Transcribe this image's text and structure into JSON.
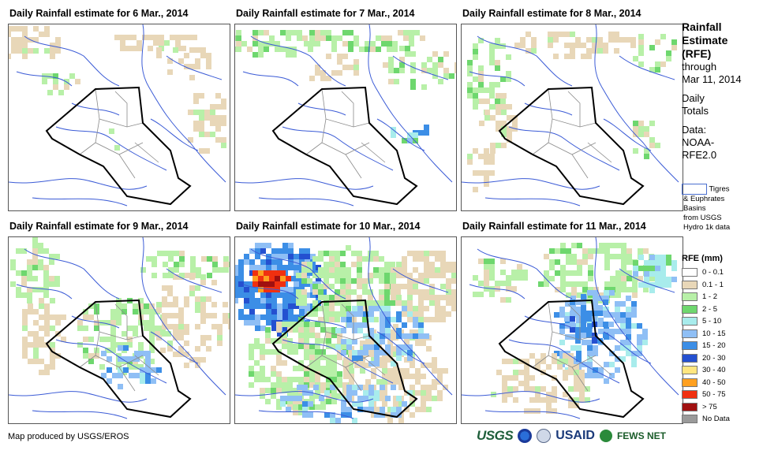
{
  "panels": [
    {
      "title": "Daily Rainfall estimate for 6 Mar., 2014"
    },
    {
      "title": "Daily Rainfall estimate for 7 Mar., 2014"
    },
    {
      "title": "Daily Rainfall estimate for 8 Mar., 2014"
    },
    {
      "title": "Daily Rainfall estimate for 9 Mar., 2014"
    },
    {
      "title": "Daily Rainfall estimate for 10 Mar., 2014"
    },
    {
      "title": "Daily Rainfall estimate for 11 Mar., 2014"
    }
  ],
  "sidebar": {
    "heading_1": "Rainfall",
    "heading_2": "Estimate",
    "heading_3": "(RFE)",
    "through": "through",
    "date": "Mar 11, 2014",
    "daily_1": "Daily",
    "daily_2": "Totals",
    "data_1": "Data:",
    "data_2": "NOAA-",
    "data_3": "RFE2.0"
  },
  "basin_key": {
    "line_1": "Tigres",
    "line_2": "& Euphrates",
    "line_3": "Basins",
    "line_4": "from USGS",
    "line_5": "Hydro 1k data"
  },
  "legend": {
    "title": "RFE (mm)",
    "items": [
      {
        "label": "0 - 0.1",
        "color": "#ffffff"
      },
      {
        "label": "0.1 - 1",
        "color": "#e8d7b8"
      },
      {
        "label": "1 - 2",
        "color": "#b8f0a8"
      },
      {
        "label": "2 - 5",
        "color": "#6ed76e"
      },
      {
        "label": "5 - 10",
        "color": "#a8ecec"
      },
      {
        "label": "10 - 15",
        "color": "#8fbff5"
      },
      {
        "label": "15 - 20",
        "color": "#3c8ee6"
      },
      {
        "label": "20 - 30",
        "color": "#2450d0"
      },
      {
        "label": "30 - 40",
        "color": "#ffe680"
      },
      {
        "label": "40 - 50",
        "color": "#ffa020"
      },
      {
        "label": "50 - 75",
        "color": "#f03010"
      },
      {
        "label": "> 75",
        "color": "#a01010"
      },
      {
        "label": "No Data",
        "color": "#9a9a9a"
      }
    ]
  },
  "footer": {
    "credit": "Map produced by USGS/EROS",
    "logo_usgs": "USGS",
    "logo_usaid": "USAID",
    "logo_fews": "FEWS NET"
  },
  "colors": {
    "basin_outline": "#3b5bd6",
    "country_border": "#000000",
    "province_border": "#8a8a8a"
  }
}
